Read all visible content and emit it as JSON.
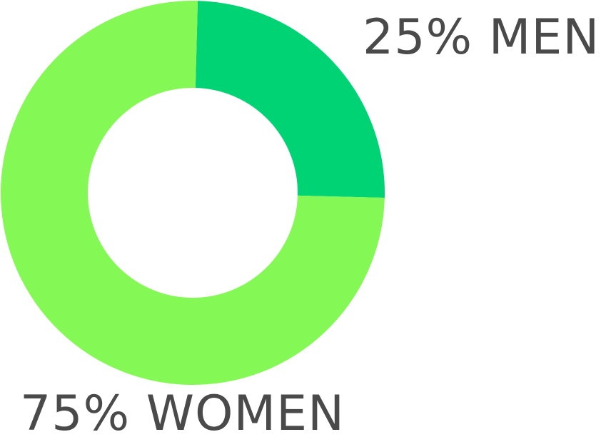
{
  "chart_data": {
    "type": "pie",
    "style": "donut",
    "title": "",
    "slices": [
      {
        "label": "25% MEN",
        "value": 25,
        "color": "#00D374"
      },
      {
        "label": "75% WOMEN",
        "value": 75,
        "color": "#84F854"
      }
    ],
    "grid": false,
    "legend": "none"
  }
}
